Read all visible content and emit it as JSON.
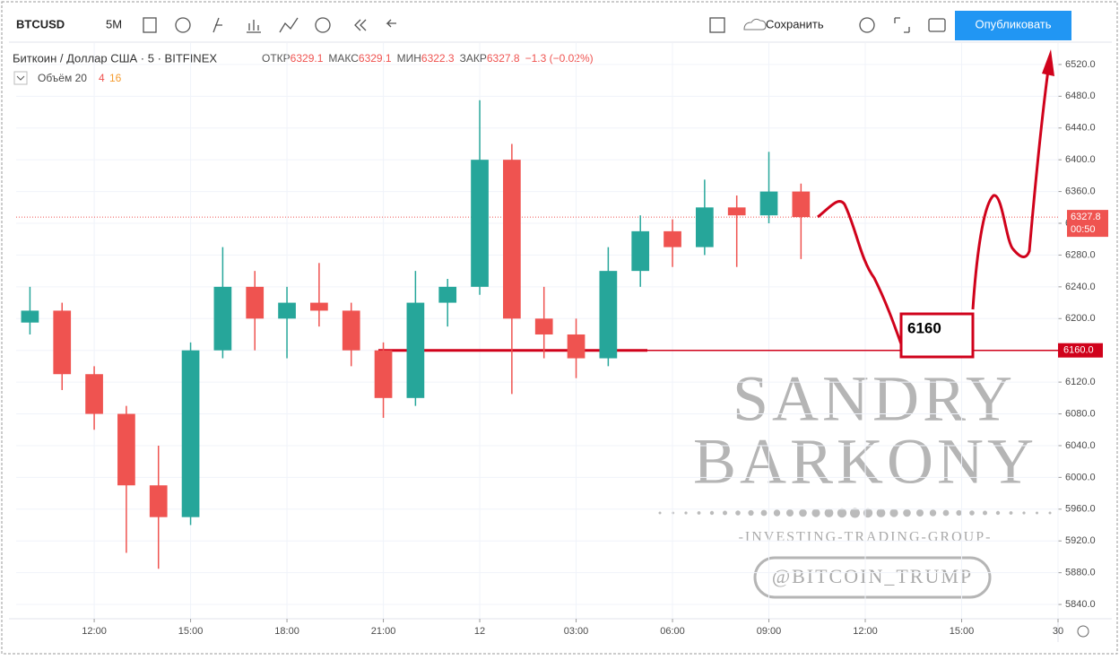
{
  "toolbar": {
    "symbol": "BTCUSD",
    "interval": "5M",
    "save": "Сохранить",
    "publish": "Опубликовать"
  },
  "chart_data": {
    "type": "candlestick",
    "title": "Биткоин / Доллар США · 5 · BITFINEX",
    "legend": {
      "open_label": "ОТКР",
      "open": 6329.1,
      "high_label": "МАКС",
      "high": 6329.1,
      "low_label": "МИН",
      "low": 6322.3,
      "close_label": "ЗАКР",
      "close": 6327.8,
      "change": "−1.3 (−0.02%)"
    },
    "volume_label": "Объём 20",
    "volume_down": 4,
    "volume_up": 16,
    "x": [
      -2,
      -1,
      0,
      1,
      2,
      3,
      4,
      5,
      6,
      7,
      8,
      9,
      10,
      11,
      12,
      13,
      14,
      15,
      16,
      17,
      18,
      19,
      20,
      21,
      22
    ],
    "open": [
      6195,
      6210,
      6130,
      6080,
      5990,
      5950,
      6160,
      6240,
      6200,
      6220,
      6210,
      6160,
      6100,
      6220,
      6240,
      6400,
      6200,
      6180,
      6150,
      6260,
      6310,
      6290,
      6340,
      6330,
      6360
    ],
    "high": [
      6240,
      6220,
      6140,
      6090,
      6040,
      6170,
      6290,
      6260,
      6240,
      6270,
      6220,
      6170,
      6260,
      6250,
      6475,
      6420,
      6240,
      6200,
      6290,
      6330,
      6325,
      6375,
      6355,
      6410,
      6370
    ],
    "low": [
      6180,
      6110,
      6060,
      5905,
      5885,
      5940,
      6150,
      6160,
      6150,
      6190,
      6140,
      6075,
      6090,
      6190,
      6230,
      6105,
      6150,
      6125,
      6140,
      6240,
      6265,
      6280,
      6265,
      6320,
      6275
    ],
    "close": [
      6210,
      6130,
      6080,
      5990,
      5950,
      6160,
      6240,
      6200,
      6220,
      6210,
      6160,
      6100,
      6220,
      6240,
      6400,
      6200,
      6180,
      6150,
      6260,
      6310,
      6290,
      6340,
      6330,
      6360,
      6327.8
    ],
    "up_color": "#26a69a",
    "down_color": "#ef5350",
    "last_price": 6327.8,
    "countdown": "00:50",
    "level": {
      "value": 6160,
      "label": "6160.0",
      "note": "6160",
      "color": "#d0021b"
    },
    "xlim": [
      -2.43,
      30
    ],
    "xticks": [
      {
        "value": 0,
        "label": "12:00"
      },
      {
        "value": 3,
        "label": "15:00"
      },
      {
        "value": 6,
        "label": "18:00"
      },
      {
        "value": 9,
        "label": "21:00"
      },
      12,
      {
        "value": 15,
        "label": "03:00"
      },
      {
        "value": 18,
        "label": "06:00"
      },
      {
        "value": 21,
        "label": "09:00"
      },
      {
        "value": 24,
        "label": "12:00"
      },
      {
        "value": 27,
        "label": "15:00"
      },
      30
    ],
    "ylim": [
      5822,
      6547
    ],
    "yticks": [
      {
        "value": 5840,
        "label": "5840.0"
      },
      {
        "value": 5880,
        "label": "5880.0"
      },
      {
        "value": 5920,
        "label": "5920.0"
      },
      {
        "value": 5960,
        "label": "5960.0"
      },
      {
        "value": 6000,
        "label": "6000.0"
      },
      {
        "value": 6040,
        "label": "6040.0"
      },
      {
        "value": 6080,
        "label": "6080.0"
      },
      {
        "value": 6120,
        "label": "6120.0"
      },
      {
        "value": 6160,
        "label": "6160.0"
      },
      {
        "value": 6200,
        "label": "6200.0"
      },
      {
        "value": 6240,
        "label": "6240.0"
      },
      {
        "value": 6280,
        "label": "6280.0"
      },
      {
        "value": 6320,
        "label": "6320.0"
      },
      {
        "value": 6360,
        "label": "6360.0"
      },
      {
        "value": 6400,
        "label": "6400.0"
      },
      {
        "value": 6440,
        "label": "6440.0"
      },
      {
        "value": 6480,
        "label": "6480.0"
      },
      {
        "value": 6520,
        "label": "6520.0"
      }
    ],
    "grid": true
  },
  "watermark": {
    "line1": "SANDRY",
    "line2": "BARKONY",
    "tagline": "-INVESTING-TRADING-GROUP-",
    "handle": "@BITCOIN_TRUMP"
  }
}
